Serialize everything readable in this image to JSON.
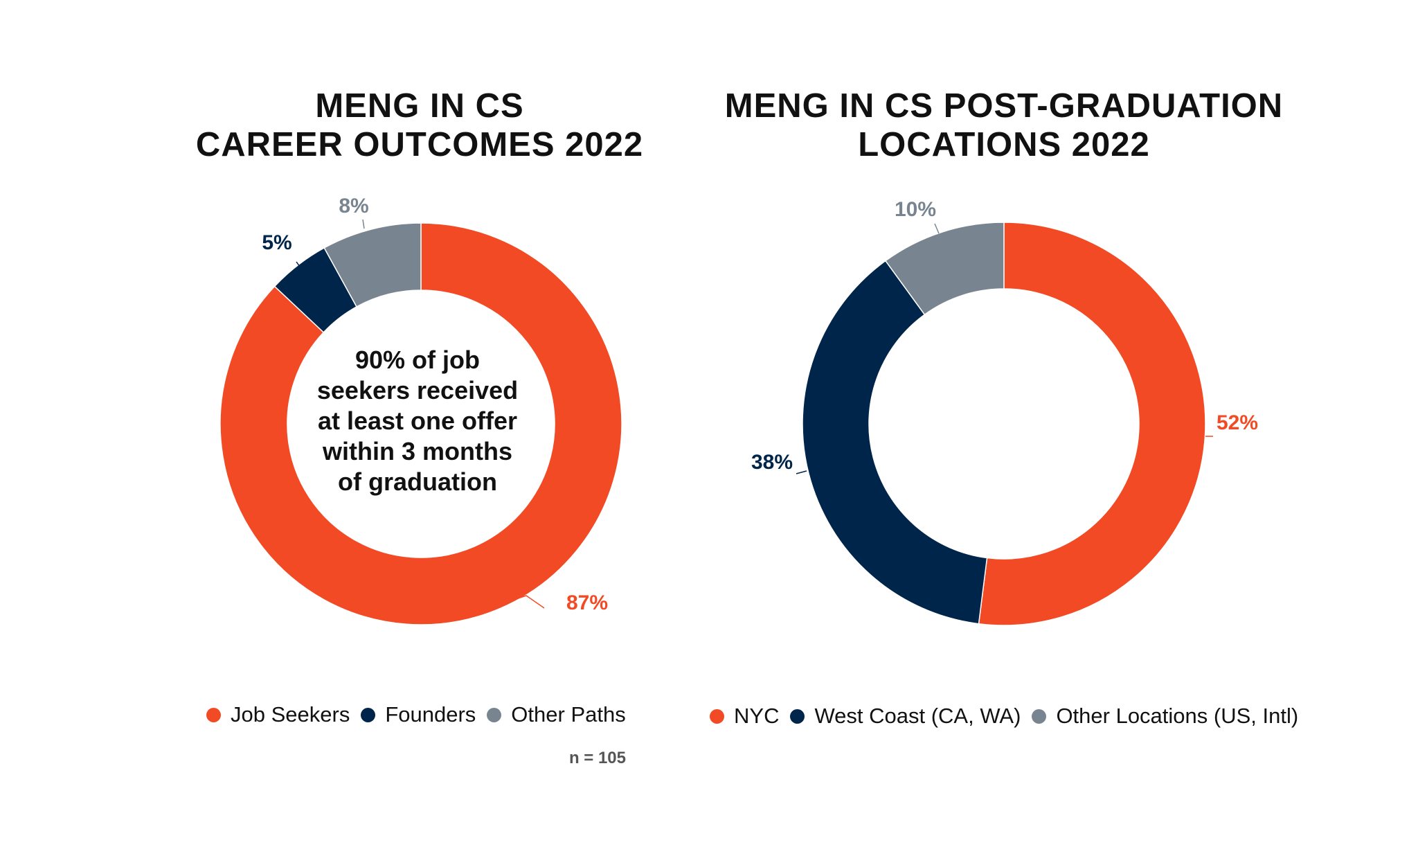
{
  "chart_data": [
    {
      "type": "pie",
      "title": [
        "MENG IN CS",
        "CAREER OUTCOMES 2022"
      ],
      "categories": [
        "Job Seekers",
        "Founders",
        "Other Paths"
      ],
      "values": [
        87,
        5,
        8
      ],
      "labels": [
        "87%",
        "5%",
        "8%"
      ],
      "colors": [
        "#f24a24",
        "#00254a",
        "#798491"
      ],
      "center_text": [
        "90% of job",
        "seekers received",
        "at least one offer",
        "within 3 months",
        "of graduation"
      ],
      "note": "n = 105",
      "legend_position": "bottom"
    },
    {
      "type": "pie",
      "title": [
        "MENG IN CS POST-GRADUATION",
        "LOCATIONS 2022"
      ],
      "categories": [
        "NYC",
        "West Coast (CA, WA)",
        "Other Locations (US, Intl)"
      ],
      "values": [
        52,
        38,
        10
      ],
      "labels": [
        "52%",
        "38%",
        "10%"
      ],
      "colors": [
        "#f24a24",
        "#00254a",
        "#798491"
      ],
      "legend_position": "bottom"
    }
  ]
}
